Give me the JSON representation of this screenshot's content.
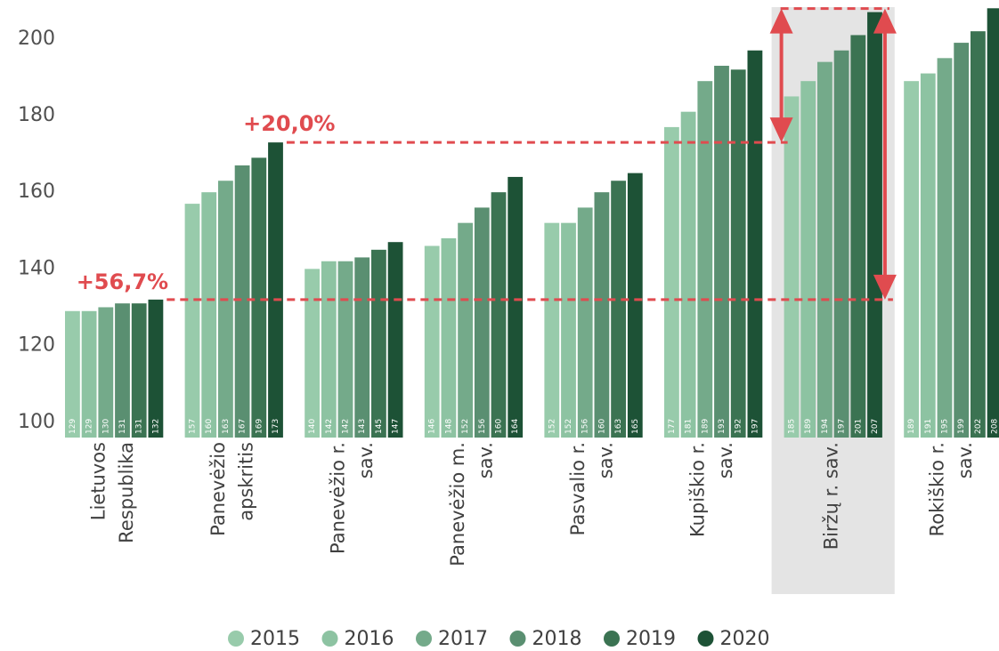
{
  "chart_data": {
    "type": "bar",
    "categories": [
      "Lietuvos\nRespublika",
      "Panevėžio\napskritis",
      "Panevėžio r.\nsav.",
      "Panevėžio m.\nsav.",
      "Pasvalio r.\nsav.",
      "Kupiškio r.\nsav.",
      "Biržų r. sav.",
      "Rokiškio r.\nsav."
    ],
    "series": [
      {
        "name": "2015",
        "color": "#98cbab",
        "values": [
          129,
          157,
          140,
          146,
          152,
          177,
          185,
          189
        ]
      },
      {
        "name": "2016",
        "color": "#8dc3a2",
        "values": [
          129,
          160,
          142,
          148,
          152,
          181,
          189,
          191
        ]
      },
      {
        "name": "2017",
        "color": "#74aa8a",
        "values": [
          130,
          163,
          142,
          152,
          156,
          189,
          194,
          195
        ]
      },
      {
        "name": "2018",
        "color": "#5a8f71",
        "values": [
          131,
          167,
          143,
          156,
          160,
          193,
          197,
          199
        ]
      },
      {
        "name": "2019",
        "color": "#3b7352",
        "values": [
          131,
          169,
          145,
          160,
          163,
          192,
          201,
          202
        ]
      },
      {
        "name": "2020",
        "color": "#1d5236",
        "values": [
          132,
          173,
          147,
          164,
          165,
          197,
          207,
          208
        ]
      }
    ],
    "annotations": [
      "+56,7%",
      "+20,0%"
    ],
    "highlight_category": "Biržų r. sav.",
    "ylim": [
      96,
      208
    ],
    "yticks": [
      100,
      120,
      140,
      160,
      180,
      200
    ],
    "legend": "bottom",
    "annotation_color": "#e04b4f"
  }
}
